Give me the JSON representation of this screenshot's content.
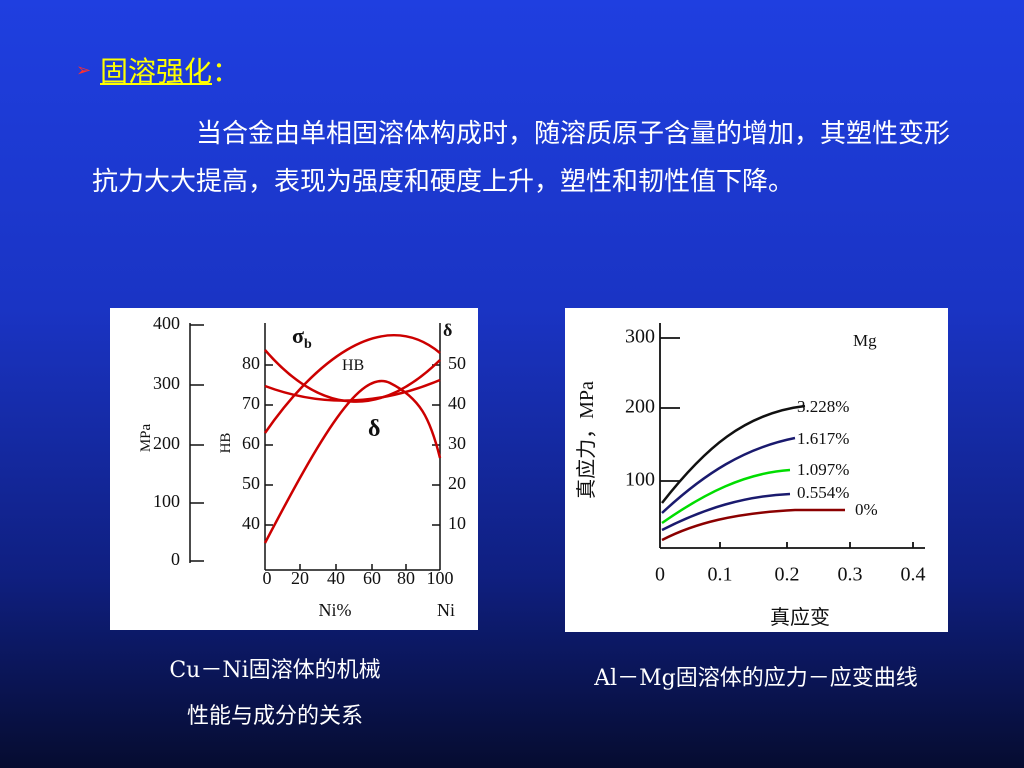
{
  "heading": {
    "title": "固溶强化",
    "colon": "："
  },
  "paragraph": "当合金由单相固溶体构成时，随溶质原子含量的增加，其塑性变形抗力大大提高，表现为强度和硬度上升，塑性和韧性值下降。",
  "figure_1": {
    "mpa_ticks": [
      "400",
      "300",
      "200",
      "100",
      "0"
    ],
    "mpa_label": "MPa",
    "hb_ticks": [
      "80",
      "70",
      "60",
      "50",
      "40"
    ],
    "hb_label": "HB",
    "delta_ticks": [
      "50",
      "40",
      "30",
      "20",
      "10"
    ],
    "x_ticks": [
      "0",
      "20",
      "40",
      "60",
      "80",
      "100"
    ],
    "x_label": "Ni%",
    "x_label_right": "Ni",
    "sigma": {
      "symbol": "σ",
      "subscript": "b"
    },
    "hb_curve_label": "HB",
    "delta_axis_label": "δ",
    "delta_curve_label": "δ",
    "caption": [
      "Cu－Ni固溶体的机械",
      "性能与成分的关系"
    ]
  },
  "figure_2": {
    "y_ticks": [
      "300",
      "200",
      "100"
    ],
    "y_label": "真应力，MPa",
    "x_ticks": [
      "0",
      "0.1",
      "0.2",
      "0.3",
      "0.4"
    ],
    "x_label": "真应变",
    "legend_title": "Mg",
    "curve_labels": [
      "3.228%",
      "1.617%",
      "1.097%",
      "0.554%",
      "0%"
    ],
    "caption": "Al－Mg固溶体的应力－应变曲线"
  }
}
